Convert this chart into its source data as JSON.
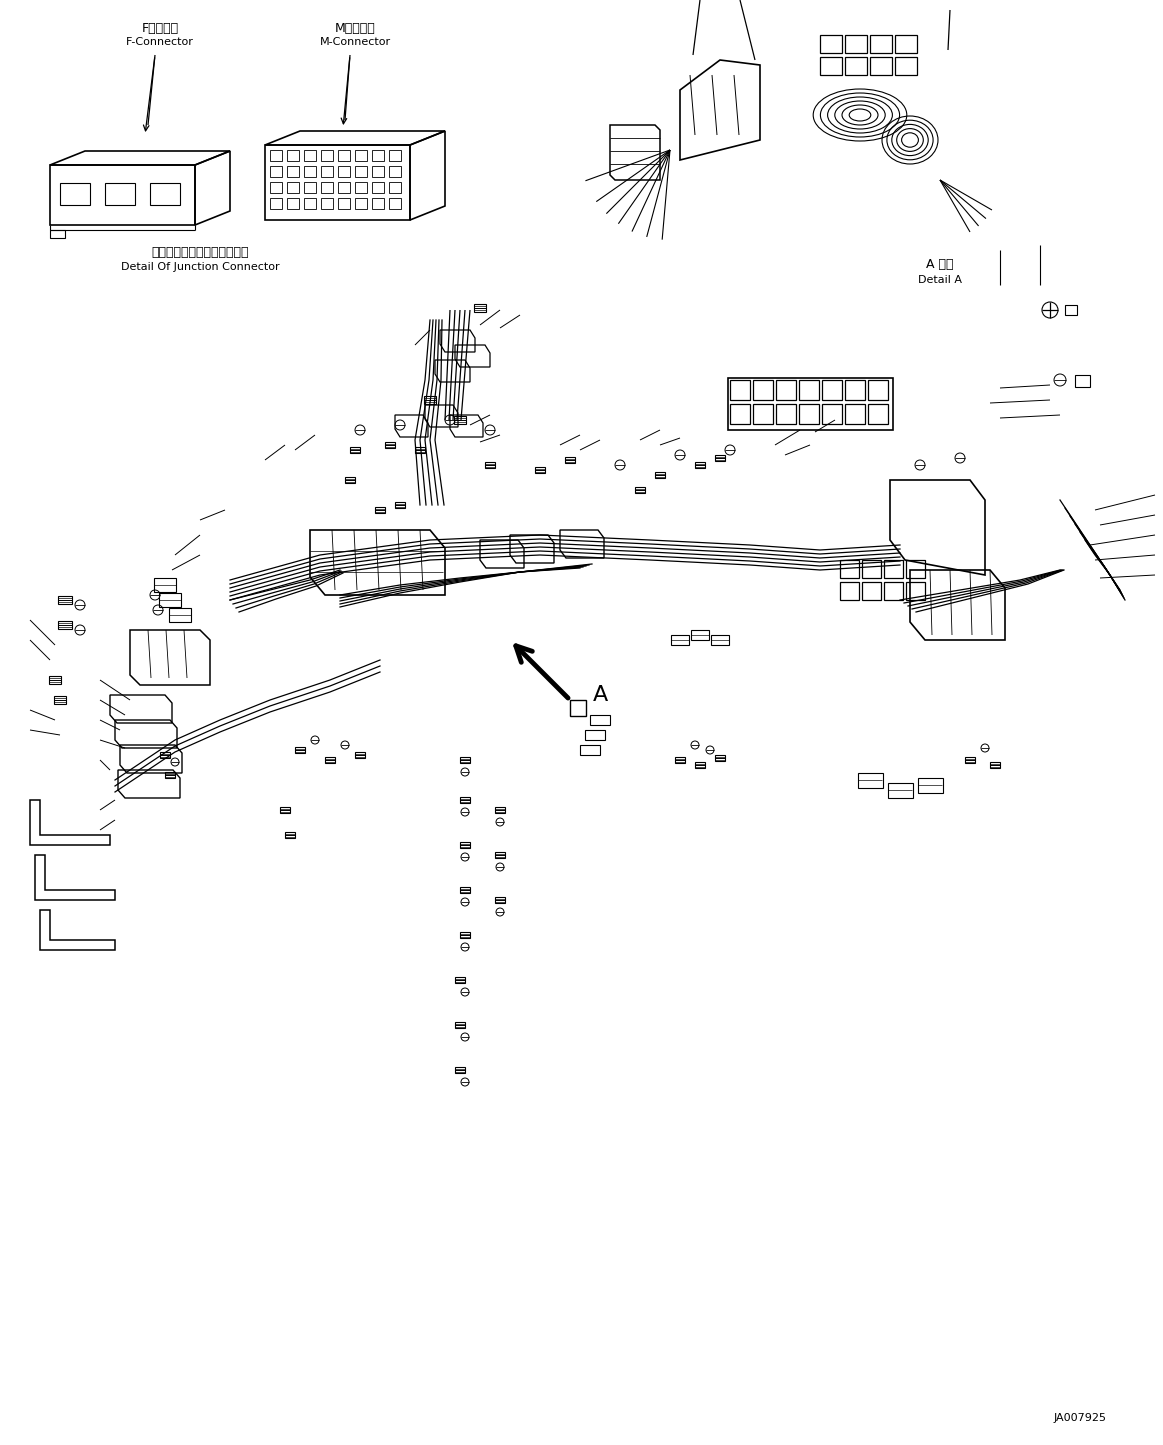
{
  "background_color": "#ffffff",
  "line_color": "#000000",
  "fig_width": 11.63,
  "fig_height": 14.45,
  "dpi": 100,
  "labels": {
    "f_connector_jp": "Fコネクタ",
    "f_connector_en": "F-Connector",
    "m_connector_jp": "Mコネクタ",
    "m_connector_en": "M-Connector",
    "junction_jp": "ジャンクションコネクタ詳細",
    "junction_en": "Detail Of Junction Connector",
    "detail_a_jp": "A 詳細",
    "detail_a_en": "Detail A",
    "label_a": "A",
    "drawing_number": "JA007925"
  },
  "fonts": {
    "jp_size": 9,
    "en_size": 8,
    "label_size": 14,
    "drawing_num_size": 8
  }
}
